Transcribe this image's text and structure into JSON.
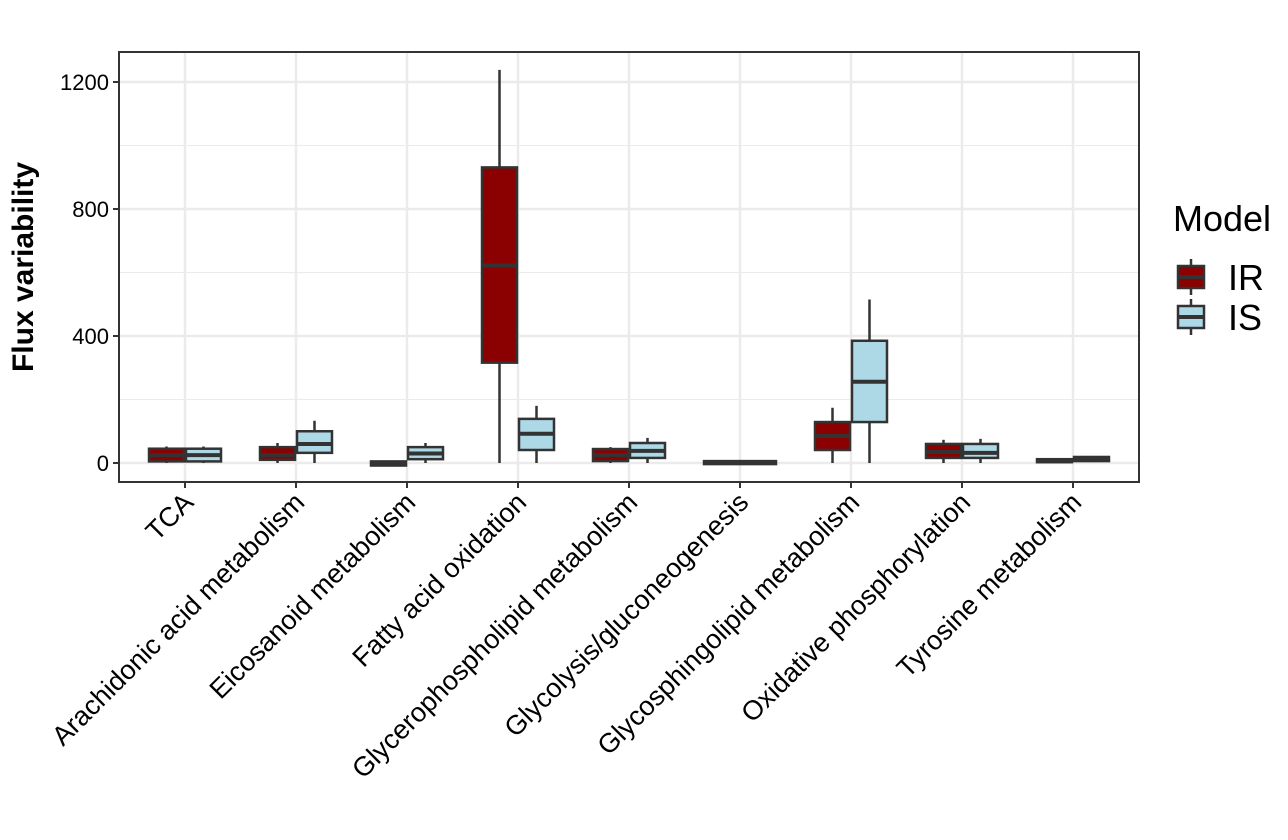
{
  "chart_data": {
    "type": "boxplot",
    "title": "",
    "xlabel": "",
    "ylabel": "Flux variability",
    "ylim": [
      -60,
      1300
    ],
    "yticks": [
      0,
      400,
      800,
      1200
    ],
    "yticks_minor": [
      200,
      600,
      1000
    ],
    "grid": true,
    "legend": {
      "title": "Model",
      "position": "right",
      "entries": [
        "IR",
        "IS"
      ]
    },
    "colors": {
      "IR": "#8B0000",
      "IS": "#ADD8E6",
      "outline": "#333333",
      "grid": "#EBEBEB"
    },
    "categories": [
      "TCA",
      "Arachidonic acid metabolism",
      "Eicosanoid metabolism",
      "Fatty acid oxidation",
      "Glycerophospholipid metabolism",
      "Glycolysis/gluconeogenesis",
      "Glycosphingolipid metabolism",
      "Oxidative phosphorylation",
      "Tyrosine metabolism"
    ],
    "series": [
      {
        "name": "IR",
        "boxes": [
          {
            "min": 0,
            "q1": 5,
            "median": 25,
            "q3": 45,
            "max": 52
          },
          {
            "min": 0,
            "q1": 10,
            "median": 25,
            "q3": 50,
            "max": 63
          },
          {
            "min": -8,
            "q1": -8,
            "median": -2,
            "q3": 5,
            "max": 5
          },
          {
            "min": 0,
            "q1": 316,
            "median": 622,
            "q3": 931,
            "max": 1238
          },
          {
            "min": 0,
            "q1": 6,
            "median": 25,
            "q3": 44,
            "max": 50
          },
          {
            "min": 0,
            "q1": 0,
            "median": 3,
            "q3": 6,
            "max": 6
          },
          {
            "min": 0,
            "q1": 41,
            "median": 85,
            "q3": 129,
            "max": 174
          },
          {
            "min": 0,
            "q1": 16,
            "median": 35,
            "q3": 60,
            "max": 73
          },
          {
            "min": 3,
            "q1": 3,
            "median": 8,
            "q3": 12,
            "max": 12
          }
        ]
      },
      {
        "name": "IS",
        "boxes": [
          {
            "min": 0,
            "q1": 5,
            "median": 25,
            "q3": 45,
            "max": 52
          },
          {
            "min": 0,
            "q1": 32,
            "median": 60,
            "q3": 100,
            "max": 133
          },
          {
            "min": 0,
            "q1": 12,
            "median": 30,
            "q3": 50,
            "max": 63
          },
          {
            "min": 0,
            "q1": 41,
            "median": 92,
            "q3": 139,
            "max": 180
          },
          {
            "min": 0,
            "q1": 16,
            "median": 38,
            "q3": 63,
            "max": 79
          },
          {
            "min": 0,
            "q1": 0,
            "median": 3,
            "q3": 6,
            "max": 6
          },
          {
            "min": 0,
            "q1": 129,
            "median": 256,
            "q3": 385,
            "max": 515
          },
          {
            "min": 0,
            "q1": 16,
            "median": 32,
            "q3": 60,
            "max": 76
          },
          {
            "min": 3,
            "q1": 6,
            "median": 12,
            "q3": 19,
            "max": 22
          }
        ]
      }
    ]
  }
}
